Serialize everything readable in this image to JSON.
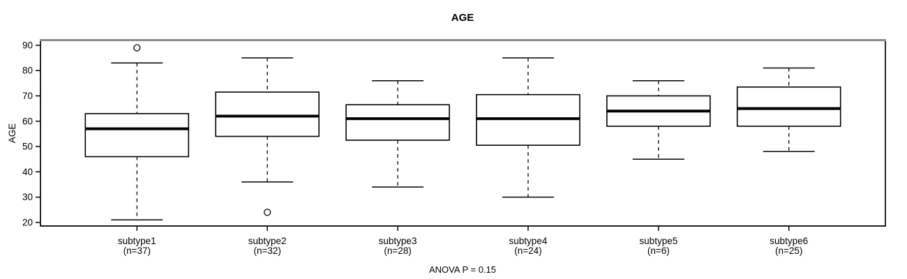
{
  "header": {
    "title": "AGE"
  },
  "colors": {
    "foreground": "#000000",
    "frame_top": "#8c8c8c",
    "background": "#ffffff",
    "box_fill": "#ffffff"
  },
  "chart_data": {
    "type": "boxplot",
    "title": "AGE",
    "ylabel": "AGE",
    "xlabel": "",
    "annotation": "ANOVA P = 0.15",
    "grid": false,
    "legend": "none",
    "ylim": [
      18.6,
      91.9
    ],
    "yticks": [
      20,
      30,
      40,
      50,
      60,
      70,
      80,
      90
    ],
    "xlim": [
      0.26,
      6.74
    ],
    "groups": [
      {
        "position": 1,
        "label": "subtype1",
        "sublabel": "(n=37)",
        "n": 37,
        "whisker_low": 21,
        "q1": 46,
        "median": 57,
        "q3": 63,
        "whisker_high": 83,
        "outliers": [
          89
        ]
      },
      {
        "position": 2,
        "label": "subtype2",
        "sublabel": "(n=32)",
        "n": 32,
        "whisker_low": 36,
        "q1": 54,
        "median": 62,
        "q3": 71.5,
        "whisker_high": 85,
        "outliers": [
          24
        ]
      },
      {
        "position": 3,
        "label": "subtype3",
        "sublabel": "(n=28)",
        "n": 28,
        "whisker_low": 34,
        "q1": 52.5,
        "median": 61,
        "q3": 66.5,
        "whisker_high": 76,
        "outliers": []
      },
      {
        "position": 4,
        "label": "subtype4",
        "sublabel": "(n=24)",
        "n": 24,
        "whisker_low": 30,
        "q1": 50.5,
        "median": 61,
        "q3": 70.5,
        "whisker_high": 85,
        "outliers": []
      },
      {
        "position": 5,
        "label": "subtype5",
        "sublabel": "(n=6)",
        "n": 6,
        "whisker_low": 45,
        "q1": 58,
        "median": 64,
        "q3": 70,
        "whisker_high": 76,
        "outliers": []
      },
      {
        "position": 6,
        "label": "subtype6",
        "sublabel": "(n=25)",
        "n": 25,
        "whisker_low": 48,
        "q1": 58,
        "median": 65,
        "q3": 73.5,
        "whisker_high": 81,
        "outliers": []
      }
    ]
  }
}
